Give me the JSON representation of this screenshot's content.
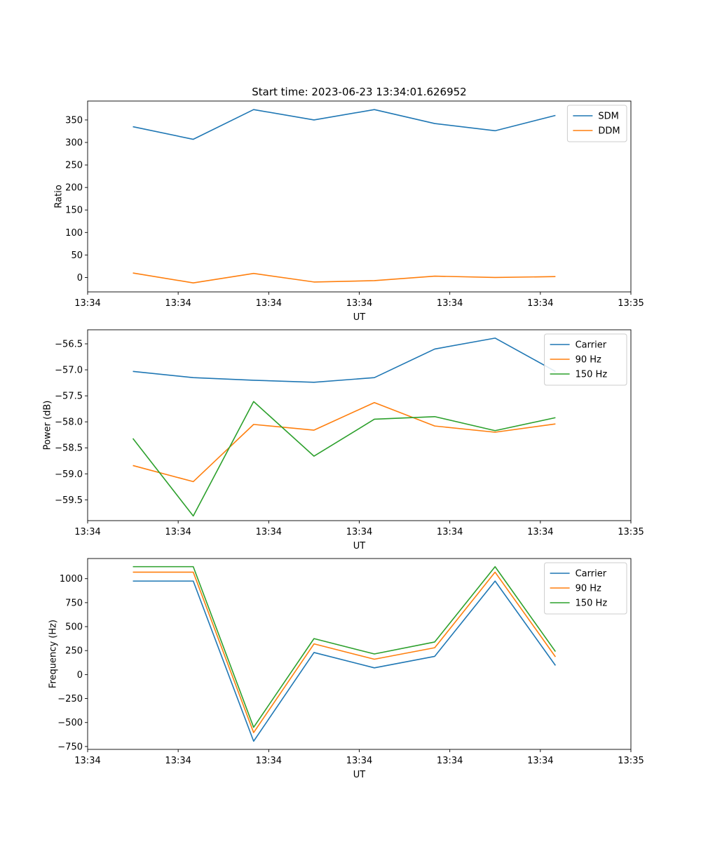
{
  "figure": {
    "title": "Start time: 2023-06-23 13:34:01.626952"
  },
  "chart_data": [
    {
      "type": "line",
      "xlabel": "UT",
      "ylabel": "Ratio",
      "x": [
        0,
        1,
        2,
        3,
        4,
        5,
        6,
        7
      ],
      "xlim": [
        -0.75,
        8.25
      ],
      "xticks": [
        -0.75,
        0.75,
        2.25,
        3.75,
        5.25,
        6.75,
        8.25
      ],
      "xtick_labels": [
        "13:34",
        "13:34",
        "13:34",
        "13:34",
        "13:34",
        "13:34",
        "13:35"
      ],
      "ylim": [
        -32,
        392
      ],
      "yticks": [
        0,
        50,
        100,
        150,
        200,
        250,
        300,
        350
      ],
      "ytick_labels": [
        "0",
        "50",
        "100",
        "150",
        "200",
        "250",
        "300",
        "350"
      ],
      "legend": "top-right",
      "series": [
        {
          "name": "SDM",
          "color": "#1f77b4",
          "values": [
            335,
            307,
            373,
            350,
            373,
            342,
            326,
            360
          ]
        },
        {
          "name": "DDM",
          "color": "#ff7f0e",
          "values": [
            10,
            -12,
            9,
            -10,
            -7,
            3,
            0,
            2
          ]
        }
      ]
    },
    {
      "type": "line",
      "xlabel": "UT",
      "ylabel": "Power (dB)",
      "x": [
        0,
        1,
        2,
        3,
        4,
        5,
        6,
        7
      ],
      "xlim": [
        -0.75,
        8.25
      ],
      "xticks": [
        -0.75,
        0.75,
        2.25,
        3.75,
        5.25,
        6.75,
        8.25
      ],
      "xtick_labels": [
        "13:34",
        "13:34",
        "13:34",
        "13:34",
        "13:34",
        "13:34",
        "13:35"
      ],
      "ylim": [
        -59.9,
        -56.23
      ],
      "yticks": [
        -59.5,
        -59.0,
        -58.5,
        -58.0,
        -57.5,
        -57.0,
        -56.5
      ],
      "ytick_labels": [
        "−59.5",
        "−59.0",
        "−58.5",
        "−58.0",
        "−57.5",
        "−57.0",
        "−56.5"
      ],
      "legend": "top-right",
      "series": [
        {
          "name": "Carrier",
          "color": "#1f77b4",
          "values": [
            -57.03,
            -57.15,
            -57.2,
            -57.24,
            -57.15,
            -56.6,
            -56.39,
            -57.03
          ]
        },
        {
          "name": "90 Hz",
          "color": "#ff7f0e",
          "values": [
            -58.84,
            -59.15,
            -58.05,
            -58.16,
            -57.63,
            -58.08,
            -58.2,
            -58.04
          ]
        },
        {
          "name": "150 Hz",
          "color": "#2ca02c",
          "values": [
            -58.32,
            -59.81,
            -57.61,
            -58.66,
            -57.95,
            -57.9,
            -58.17,
            -57.92
          ]
        }
      ]
    },
    {
      "type": "line",
      "xlabel": "UT",
      "ylabel": "Frequency (Hz)",
      "x": [
        0,
        1,
        2,
        3,
        4,
        5,
        6,
        7
      ],
      "xlim": [
        -0.75,
        8.25
      ],
      "xticks": [
        -0.75,
        0.75,
        2.25,
        3.75,
        5.25,
        6.75,
        8.25
      ],
      "xtick_labels": [
        "13:34",
        "13:34",
        "13:34",
        "13:34",
        "13:34",
        "13:34",
        "13:35"
      ],
      "ylim": [
        -780,
        1210
      ],
      "yticks": [
        -750,
        -500,
        -250,
        0,
        250,
        500,
        750,
        1000
      ],
      "ytick_labels": [
        "−750",
        "−500",
        "−250",
        "0",
        "250",
        "500",
        "750",
        "1000"
      ],
      "legend": "top-right",
      "series": [
        {
          "name": "Carrier",
          "color": "#1f77b4",
          "values": [
            975,
            975,
            -695,
            230,
            70,
            190,
            975,
            95
          ]
        },
        {
          "name": "90 Hz",
          "color": "#ff7f0e",
          "values": [
            1068,
            1068,
            -605,
            320,
            160,
            280,
            1068,
            185
          ]
        },
        {
          "name": "150 Hz",
          "color": "#2ca02c",
          "values": [
            1125,
            1125,
            -550,
            375,
            215,
            340,
            1125,
            240
          ]
        }
      ]
    }
  ]
}
